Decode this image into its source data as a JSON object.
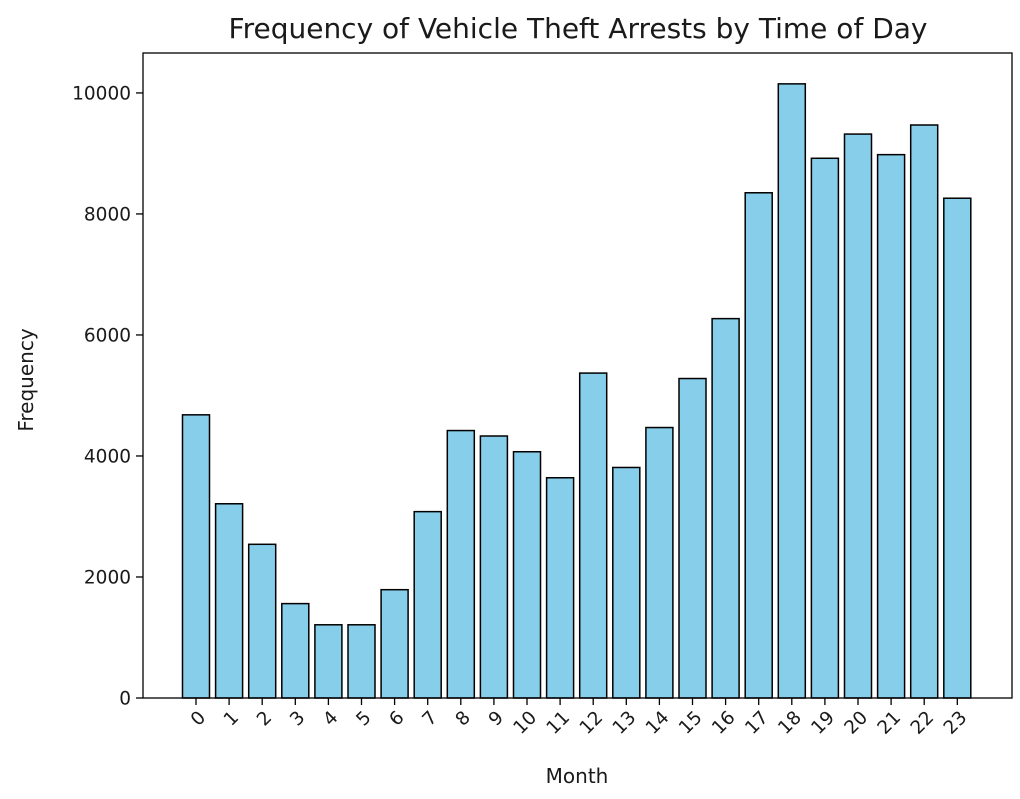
{
  "chart_data": {
    "type": "bar",
    "title": "Frequency of Vehicle Theft Arrests by Time of Day",
    "xlabel": "Month",
    "ylabel": "Frequency",
    "categories": [
      "0",
      "1",
      "2",
      "3",
      "4",
      "5",
      "6",
      "7",
      "8",
      "9",
      "10",
      "11",
      "12",
      "13",
      "14",
      "15",
      "16",
      "17",
      "18",
      "19",
      "20",
      "21",
      "22",
      "23"
    ],
    "values": [
      4680,
      3210,
      2540,
      1560,
      1210,
      1210,
      1790,
      3080,
      4420,
      4330,
      4070,
      3640,
      5370,
      3810,
      4470,
      5280,
      6270,
      8350,
      10150,
      8920,
      9320,
      8980,
      9470,
      8260
    ],
    "ylim": [
      0,
      10660
    ],
    "yticks": [
      0,
      2000,
      4000,
      6000,
      8000,
      10000
    ],
    "grid": false,
    "colors": {
      "bar_fill": "#87ceeb",
      "bar_edge": "#000000"
    }
  }
}
